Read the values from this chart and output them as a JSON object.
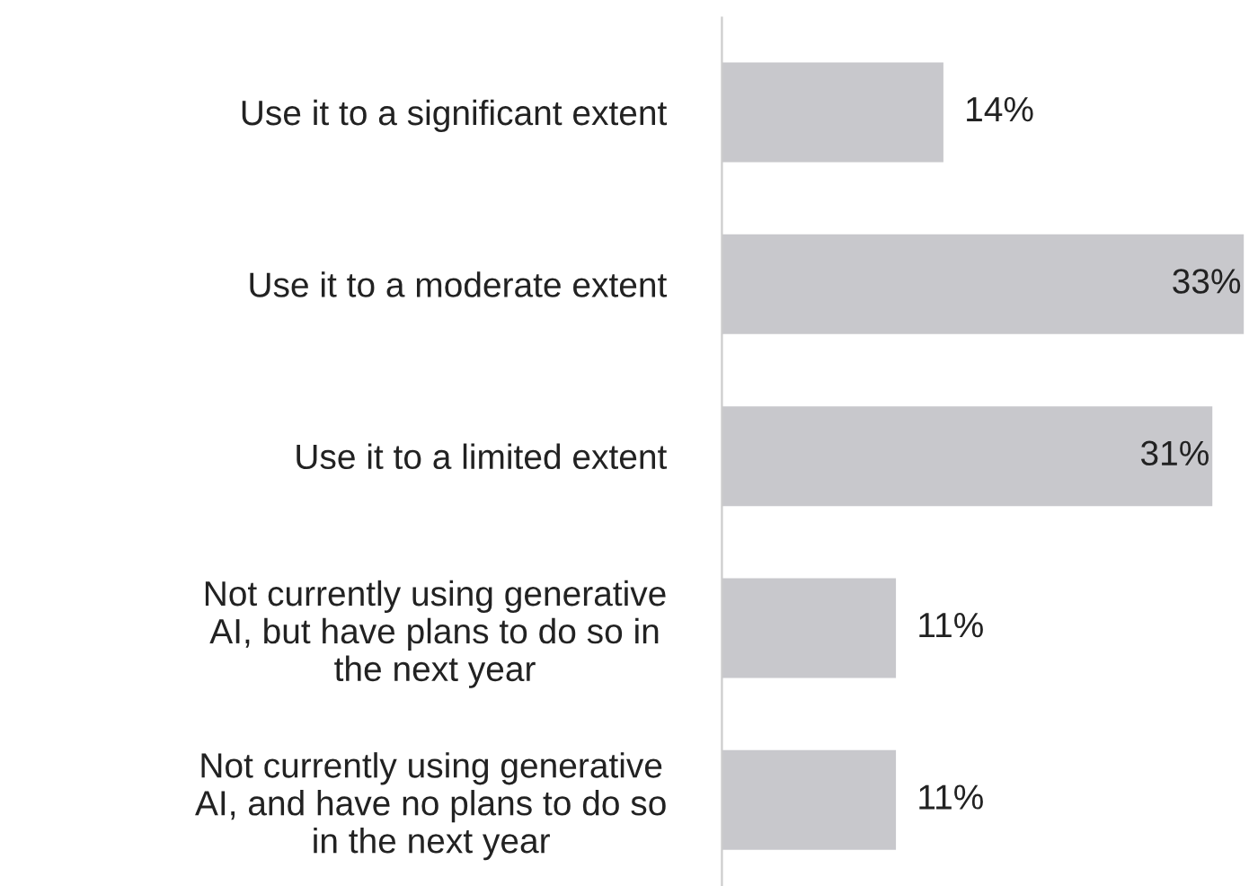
{
  "chart_data": {
    "type": "bar",
    "orientation": "horizontal",
    "categories": [
      "Use it to a significant extent",
      "Use it to a moderate extent",
      "Use it to a limited extent",
      "Not currently using generative\nAI, but have plans to do so in\nthe next year",
      "Not currently using generative\nAI, and have no plans to do so\nin the next year"
    ],
    "values": [
      14,
      33,
      31,
      11,
      11
    ],
    "value_labels": [
      "14%",
      "33%",
      "31%",
      "11%",
      "11%"
    ],
    "color": "#c8c8cc",
    "grid": false,
    "legend": false
  }
}
